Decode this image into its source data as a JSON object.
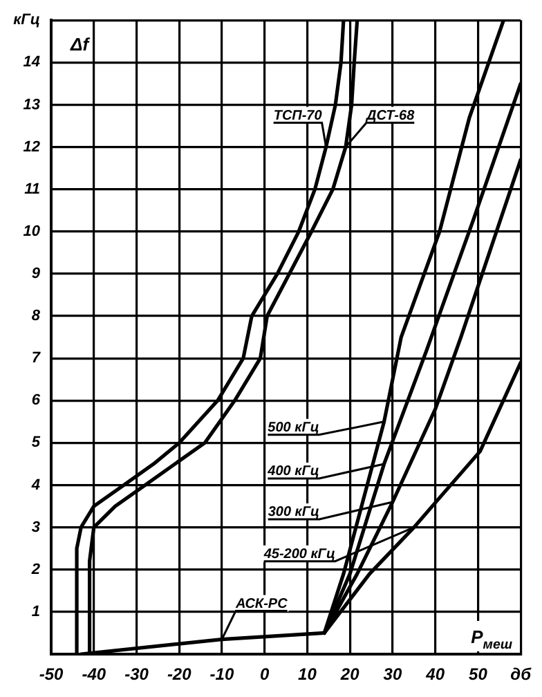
{
  "chart_data": {
    "type": "line",
    "xlabel": "P$_{меш}$",
    "ylabel": "Δf",
    "xlim": [
      -50,
      60
    ],
    "ylim": [
      0,
      15
    ],
    "xticks": [
      -50,
      -40,
      -30,
      -20,
      -10,
      0,
      10,
      20,
      30,
      40,
      50,
      {
        "value": 60,
        "label": "дб"
      }
    ],
    "yticks": [
      1,
      2,
      3,
      4,
      5,
      6,
      7,
      8,
      9,
      10,
      11,
      12,
      13,
      14,
      {
        "value": 15,
        "label": "кГц"
      }
    ],
    "grid": true,
    "legend": false,
    "marker": "none",
    "line_style": "solid",
    "series": [
      {
        "name": "ТСП-70",
        "color": "#000000",
        "x": [
          -44,
          -44,
          -43,
          -40,
          -33,
          -26,
          -20,
          -11,
          -5,
          -3,
          3,
          8,
          11.8,
          14.4,
          16.6,
          17.9,
          18.5
        ],
        "values": [
          0,
          2.5,
          3,
          3.5,
          4,
          4.5,
          5,
          6,
          7,
          8,
          9,
          10,
          11,
          12,
          13,
          14,
          15
        ]
      },
      {
        "name": "ДСТ-68",
        "color": "#000000",
        "x": [
          -41,
          -41,
          -40,
          -35,
          -28,
          -14,
          -7,
          -1,
          0.6,
          5.8,
          11,
          16,
          19,
          20.4,
          21,
          21.7
        ],
        "values": [
          0,
          2.2,
          3,
          3.5,
          4,
          5,
          6,
          7,
          8,
          9,
          10,
          11,
          12,
          13,
          14,
          15
        ]
      },
      {
        "name": "АСК-РС",
        "color": "#000000",
        "x": [
          -43,
          -10,
          14
        ],
        "values": [
          0,
          0.35,
          0.5
        ]
      },
      {
        "name": "500 кГц",
        "color": "#000000",
        "x": [
          14,
          18.5,
          28,
          32,
          41,
          48,
          56
        ],
        "values": [
          0.5,
          1.9,
          5.5,
          7.5,
          10,
          12.7,
          15
        ]
      },
      {
        "name": "400 кГц",
        "color": "#000000",
        "x": [
          14,
          20,
          28,
          38,
          49,
          60
        ],
        "values": [
          0.5,
          1.9,
          4.5,
          7.2,
          10.3,
          13.5
        ]
      },
      {
        "name": "300 кГц",
        "color": "#000000",
        "x": [
          14,
          21.7,
          30,
          40,
          46,
          60
        ],
        "values": [
          0.5,
          1.9,
          3.6,
          5.8,
          7.5,
          11.7
        ]
      },
      {
        "name": "45-200 кГц",
        "color": "#000000",
        "x": [
          14,
          24.6,
          35,
          41,
          50.5,
          60
        ],
        "values": [
          0.5,
          1.9,
          3,
          3.7,
          4.8,
          6.9
        ]
      }
    ]
  }
}
